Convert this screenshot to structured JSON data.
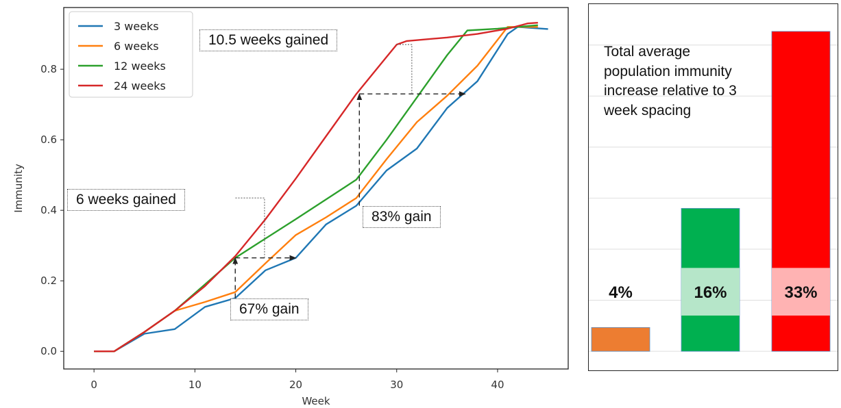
{
  "chart_data": [
    {
      "type": "line",
      "title": "",
      "xlabel": "Week",
      "ylabel": "Immunity",
      "xlim": [
        -3,
        47
      ],
      "ylim": [
        -0.05,
        0.975
      ],
      "xticks": [
        0,
        10,
        20,
        30,
        40
      ],
      "yticks": [
        0.0,
        0.2,
        0.4,
        0.6,
        0.8
      ],
      "xtick_labels": [
        "0",
        "10",
        "20",
        "30",
        "40"
      ],
      "ytick_labels": [
        "0.0",
        "0.2",
        "0.4",
        "0.6",
        "0.8"
      ],
      "grid": false,
      "legend_position": "top-left",
      "series": [
        {
          "name": "3 weeks",
          "color": "#1f77b4",
          "x": [
            0,
            2,
            5,
            8,
            11,
            14,
            17,
            20,
            23,
            26,
            29,
            32,
            35,
            38,
            41,
            42,
            43,
            45
          ],
          "y": [
            0,
            0,
            0.05,
            0.063,
            0.126,
            0.151,
            0.23,
            0.265,
            0.36,
            0.413,
            0.513,
            0.575,
            0.69,
            0.766,
            0.9,
            0.92,
            0.918,
            0.914
          ]
        },
        {
          "name": "6 weeks",
          "color": "#ff7f0e",
          "x": [
            0,
            2,
            5,
            8,
            11,
            14,
            17,
            20,
            23,
            26,
            29,
            32,
            35,
            38,
            41,
            42,
            44
          ],
          "y": [
            0,
            0,
            0.055,
            0.115,
            0.14,
            0.168,
            0.25,
            0.33,
            0.38,
            0.435,
            0.545,
            0.65,
            0.725,
            0.81,
            0.92,
            0.92,
            0.92
          ]
        },
        {
          "name": "12 weeks",
          "color": "#2ca02c",
          "x": [
            0,
            2,
            5,
            8,
            11,
            14,
            20,
            26,
            29,
            32,
            35,
            37,
            40,
            42,
            44
          ],
          "y": [
            0,
            0,
            0.055,
            0.115,
            0.19,
            0.265,
            0.375,
            0.487,
            0.6,
            0.72,
            0.84,
            0.91,
            0.915,
            0.92,
            0.925
          ]
        },
        {
          "name": "24 weeks",
          "color": "#d62728",
          "x": [
            0,
            2,
            5,
            8,
            11,
            14,
            17,
            20,
            23,
            26,
            29,
            30,
            31,
            35,
            38,
            41,
            43,
            44
          ],
          "y": [
            0,
            0,
            0.055,
            0.115,
            0.185,
            0.27,
            0.375,
            0.49,
            0.61,
            0.73,
            0.835,
            0.87,
            0.88,
            0.89,
            0.9,
            0.915,
            0.93,
            0.932
          ]
        }
      ],
      "annotations": [
        {
          "text": "10.5 weeks gained"
        },
        {
          "text": "6 weeks gained"
        },
        {
          "text": "83% gain"
        },
        {
          "text": "67% gain"
        }
      ]
    },
    {
      "type": "bar",
      "title": "Total average population immunity increase relative to 3 week spacing",
      "categories": [
        "",
        "",
        ""
      ],
      "values": [
        0.07,
        0.42,
        0.94
      ],
      "ylim": [
        -0.06,
        1.0
      ],
      "colors": [
        "#ed7d31",
        "#00b050",
        "#ff0000"
      ],
      "highlight_colors": [
        "#ffffff",
        "#b6e6c9",
        "#ffb3b3"
      ],
      "data_labels": [
        "4%",
        "16%",
        "33%"
      ],
      "grid": true
    }
  ]
}
